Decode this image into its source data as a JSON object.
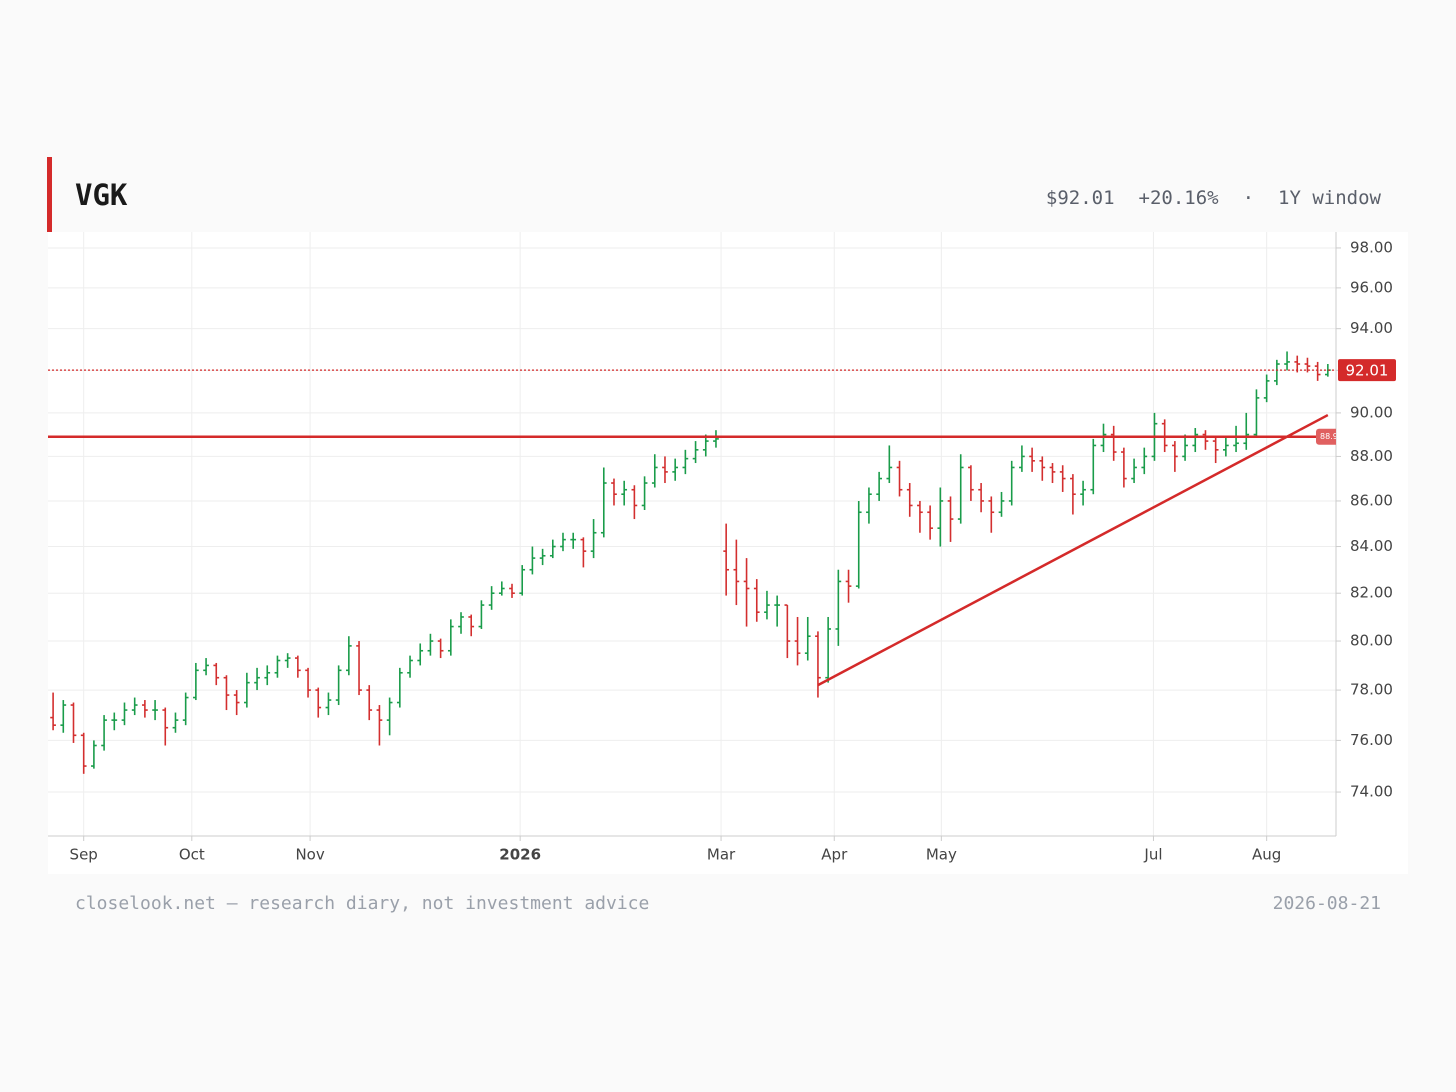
{
  "header": {
    "ticker": "VGK",
    "price": "$92.01",
    "change": "+20.16%",
    "separator": "·",
    "window": "1Y window"
  },
  "footer": {
    "left": "closelook.net — research diary, not investment advice",
    "right": "2026-08-21"
  },
  "chart_data": {
    "type": "ohlc",
    "log_y": true,
    "grid": true,
    "up_color": "#1a9c4a",
    "down_color": "#d32f2f",
    "ylim": [
      72.34,
      98.81
    ],
    "yticks": [
      {
        "value": 74,
        "label": "74.00"
      },
      {
        "value": 76,
        "label": "76.00"
      },
      {
        "value": 78,
        "label": "78.00"
      },
      {
        "value": 80,
        "label": "80.00"
      },
      {
        "value": 82,
        "label": "82.00"
      },
      {
        "value": 84,
        "label": "84.00"
      },
      {
        "value": 86,
        "label": "86.00"
      },
      {
        "value": 88,
        "label": "88.00"
      },
      {
        "value": 90,
        "label": "90.00"
      },
      {
        "value": 92,
        "label": "92.00"
      },
      {
        "value": 94,
        "label": "94.00"
      },
      {
        "value": 96,
        "label": "96.00"
      },
      {
        "value": 98,
        "label": "98.00"
      }
    ],
    "xlim": [
      -0.5,
      125.8
    ],
    "xticks": [
      {
        "value": 3,
        "label": "Sep"
      },
      {
        "value": 13.6,
        "label": "Oct"
      },
      {
        "value": 25.2,
        "label": "Nov"
      },
      {
        "value": 45.8,
        "label": "2026"
      },
      {
        "value": 65.5,
        "label": "Mar"
      },
      {
        "value": 76.6,
        "label": "Apr"
      },
      {
        "value": 87.1,
        "label": "May"
      },
      {
        "value": 107.9,
        "label": "Jul"
      },
      {
        "value": 119,
        "label": "Aug"
      }
    ],
    "open": [
      76.9,
      76.6,
      77.4,
      76.2,
      75,
      75.8,
      76.8,
      76.8,
      77.2,
      77.4,
      77.2,
      77.2,
      76.5,
      76.8,
      77.7,
      78.8,
      79,
      78.5,
      77.8,
      77.5,
      78.3,
      78.5,
      78.7,
      79.2,
      79.3,
      78.8,
      78,
      77.3,
      77.6,
      78.8,
      79.8,
      78,
      77.2,
      76.8,
      77.5,
      78.7,
      79.2,
      79.6,
      80,
      79.6,
      80.6,
      81,
      80.6,
      81.5,
      82,
      82.2,
      82,
      83,
      83.5,
      83.6,
      84,
      84.3,
      84.3,
      83.8,
      84.6,
      86.8,
      86.3,
      86.5,
      85.8,
      86.8,
      87.5,
      87.3,
      87.5,
      87.9,
      88.3,
      88.7,
      83.8,
      83,
      82.5,
      82.2,
      81.2,
      81.5,
      81.5,
      80,
      79.5,
      80.2,
      78.5,
      80.5,
      82.5,
      82.3,
      85.5,
      86.3,
      87,
      87.5,
      86.5,
      85.8,
      85.5,
      84.8,
      86,
      85.2,
      87.5,
      86.5,
      86,
      85.5,
      86,
      87.5,
      88,
      87.8,
      87.5,
      87.3,
      87,
      86.3,
      86.5,
      88.5,
      89,
      88.2,
      87,
      87.5,
      88,
      89.5,
      88.5,
      88,
      88.5,
      89,
      88.7,
      88.3,
      88.5,
      88.6,
      89,
      90.7,
      91.5,
      92.3,
      92.4,
      92.3,
      92.2,
      91.8
    ],
    "high": [
      77.9,
      77.6,
      77.5,
      76.3,
      76,
      77,
      77.1,
      77.5,
      77.7,
      77.6,
      77.6,
      77.3,
      77.1,
      77.9,
      79.1,
      79.3,
      79.1,
      78.6,
      78,
      78.7,
      78.9,
      79,
      79.4,
      79.5,
      79.4,
      78.9,
      78.1,
      77.9,
      79,
      80.2,
      80,
      78.2,
      77.4,
      77.7,
      78.9,
      79.4,
      79.9,
      80.3,
      80.1,
      80.9,
      81.2,
      81.1,
      81.7,
      82.3,
      82.5,
      82.4,
      83.2,
      84,
      83.9,
      84.3,
      84.6,
      84.6,
      84.4,
      85.2,
      87.5,
      87,
      86.9,
      86.7,
      87.1,
      88.1,
      88,
      87.9,
      88.3,
      88.7,
      89,
      89.2,
      85,
      84.3,
      83.5,
      82.6,
      82.1,
      81.9,
      81.5,
      81,
      81,
      80.4,
      81,
      83,
      83,
      86,
      86.6,
      87.3,
      88.5,
      87.8,
      86.8,
      86,
      85.8,
      86.6,
      86.2,
      88.1,
      87.6,
      86.8,
      86.2,
      86.4,
      87.8,
      88.5,
      88.4,
      88,
      87.7,
      87.6,
      87.2,
      86.9,
      88.8,
      89.5,
      89.4,
      88.4,
      87.9,
      88.4,
      90,
      89.7,
      88.7,
      89,
      89.3,
      89.2,
      88.9,
      88.9,
      89.4,
      90,
      91.1,
      91.8,
      92.5,
      92.9,
      92.7,
      92.6,
      92.4,
      92.3
    ],
    "low": [
      76.4,
      76.3,
      75.9,
      74.7,
      74.9,
      75.6,
      76.4,
      76.6,
      77,
      76.9,
      76.8,
      75.8,
      76.3,
      76.6,
      77.6,
      78.6,
      78.2,
      77.2,
      77,
      77.3,
      78,
      78.2,
      78.5,
      78.9,
      78.5,
      77.7,
      76.9,
      77,
      77.4,
      78.6,
      77.8,
      76.8,
      75.8,
      76.2,
      77.3,
      78.5,
      79,
      79.4,
      79.3,
      79.4,
      80.3,
      80.2,
      80.5,
      81.3,
      81.9,
      81.8,
      81.9,
      82.8,
      83.2,
      83.5,
      83.8,
      83.9,
      83.1,
      83.5,
      84.4,
      85.8,
      85.8,
      85.2,
      85.6,
      86.6,
      86.8,
      86.9,
      87.2,
      87.7,
      88,
      88.4,
      81.9,
      81.5,
      80.6,
      80.8,
      80.9,
      80.6,
      79.3,
      79,
      79.2,
      77.7,
      78.3,
      79.8,
      81.6,
      82.2,
      85,
      86,
      86.8,
      86.2,
      85.3,
      84.6,
      84.3,
      84,
      84.2,
      85,
      86,
      85.5,
      84.6,
      85.3,
      85.8,
      87.3,
      87.3,
      86.9,
      86.8,
      86.4,
      85.4,
      85.8,
      86.3,
      88.2,
      87.8,
      86.6,
      86.8,
      87.2,
      87.8,
      88.2,
      87.3,
      87.8,
      88.2,
      88.3,
      87.7,
      88,
      88.2,
      88.3,
      88.9,
      90.5,
      91.3,
      92,
      91.9,
      91.9,
      91.5,
      91.7
    ],
    "close": [
      76.6,
      77.4,
      76.2,
      75,
      75.8,
      76.8,
      76.8,
      77.2,
      77.4,
      77.2,
      77.2,
      76.5,
      76.8,
      77.7,
      78.8,
      79,
      78.5,
      77.8,
      77.5,
      78.3,
      78.5,
      78.7,
      79.2,
      79.3,
      78.8,
      78,
      77.3,
      77.6,
      78.8,
      79.8,
      78,
      77.2,
      76.8,
      77.5,
      78.7,
      79.2,
      79.6,
      80,
      79.6,
      80.6,
      81,
      80.6,
      81.5,
      82,
      82.2,
      82,
      83,
      83.5,
      83.6,
      84,
      84.3,
      84.3,
      83.8,
      84.6,
      86.8,
      86.3,
      86.5,
      85.8,
      86.8,
      87.5,
      87.3,
      87.5,
      87.9,
      88.3,
      88.7,
      88.8,
      83,
      82.5,
      82.2,
      81.2,
      81.5,
      81.5,
      80,
      79.5,
      80.2,
      78.5,
      80.5,
      82.5,
      82.3,
      85.5,
      86.3,
      87,
      87.5,
      86.5,
      85.8,
      85.5,
      84.8,
      86,
      85.2,
      87.5,
      86.5,
      86,
      85.5,
      86,
      87.5,
      88,
      87.8,
      87.5,
      87.3,
      87,
      86.3,
      86.5,
      88.5,
      89,
      88.2,
      87,
      87.5,
      88,
      89.5,
      88.5,
      88,
      88.5,
      89,
      88.7,
      88.3,
      88.5,
      88.6,
      89,
      90.7,
      91.5,
      92.3,
      92.4,
      92.3,
      92.2,
      91.8,
      92.01
    ],
    "last_price": {
      "value": 92.01,
      "label": "92.01"
    },
    "resistance": {
      "value": 88.9,
      "label": "88.9"
    },
    "line_color": "#d42a2a",
    "trendline": {
      "x": [
        75,
        125
      ],
      "y": [
        78.2,
        89.9
      ]
    }
  }
}
